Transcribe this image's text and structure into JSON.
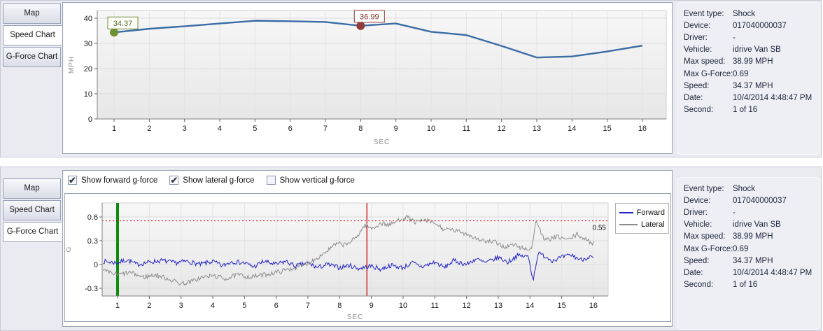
{
  "sidebar": {
    "tabs": [
      "Map",
      "Speed Chart",
      "G-Force Chart"
    ]
  },
  "top_panel": {
    "selected_tab": "Speed Chart"
  },
  "bottom_panel": {
    "selected_tab": "G-Force Chart",
    "checkboxes": [
      {
        "label": "Show forward g-force",
        "checked": true
      },
      {
        "label": "Show lateral g-force",
        "checked": true
      },
      {
        "label": "Show vertical g-force",
        "checked": false
      }
    ]
  },
  "info": {
    "rows": [
      {
        "label": "Event type:",
        "value": "Shock"
      },
      {
        "label": "Device:",
        "value": "017040000037"
      },
      {
        "label": "Driver:",
        "value": "-"
      },
      {
        "label": "Vehicle:",
        "value": "idrive Van SB"
      },
      {
        "label": "Max speed:",
        "value": "38.99 MPH"
      },
      {
        "label": "Max G-Force:",
        "value": "0.69"
      },
      {
        "label": "Speed:",
        "value": "34.37 MPH"
      },
      {
        "label": "Date:",
        "value": "10/4/2014 4:48:47 PM"
      },
      {
        "label": "Second:",
        "value": "1 of 16"
      }
    ]
  },
  "colors": {
    "speed_line": "#3a6ca6",
    "forward": "#2323c8",
    "lateral": "#8c8c8c",
    "green_marker": "#6d9032",
    "red_marker": "#8e3b3b",
    "green_event_line": "#0e8a0e",
    "red_event_line": "#cc2a2a",
    "threshold": "#e00000",
    "axis": "#808080",
    "grid": "#dcdcdc"
  },
  "chart_data": [
    {
      "type": "line",
      "title": "Speed Chart",
      "xlabel": "SEC",
      "ylabel": "MPH",
      "x": [
        1,
        2,
        3,
        4,
        5,
        6,
        7,
        8,
        9,
        10,
        11,
        12,
        13,
        14,
        15,
        16
      ],
      "values": [
        34.37,
        35.8,
        36.8,
        37.9,
        38.99,
        38.8,
        38.5,
        36.99,
        37.9,
        34.6,
        33.3,
        29.0,
        24.4,
        24.8,
        26.8,
        29.1
      ],
      "yticks": [
        0,
        10,
        20,
        30,
        40
      ],
      "ylim": [
        0,
        43
      ],
      "line_color": "#3a6ca6",
      "markers": [
        {
          "x": 1,
          "value": 34.37,
          "label": "34.37",
          "color": "#6d9032",
          "text_color": "#55702a"
        },
        {
          "x": 8,
          "value": 36.99,
          "label": "36.99",
          "color": "#8e3b3b",
          "text_color": "#7d2f2f"
        }
      ]
    },
    {
      "type": "line",
      "title": "G-Force Chart",
      "xlabel": "SEC",
      "ylabel": "G",
      "xticks": [
        1,
        2,
        3,
        4,
        5,
        6,
        7,
        8,
        9,
        10,
        11,
        12,
        13,
        14,
        15,
        16
      ],
      "yticks": [
        -0.3,
        0,
        0.3,
        0.6
      ],
      "ylim": [
        -0.4,
        0.78
      ],
      "threshold": {
        "value": 0.55,
        "label": "0.55",
        "color": "#e00000"
      },
      "event_lines": [
        {
          "x": 1,
          "color": "#0e8a0e",
          "width": 4,
          "name": "event-start-line"
        },
        {
          "x": 8.86,
          "color": "#cc2a2a",
          "width": 1.5,
          "name": "shock-moment-line"
        }
      ],
      "legend": [
        {
          "name": "Forward",
          "color": "#2323c8"
        },
        {
          "name": "Lateral",
          "color": "#8c8c8c"
        }
      ],
      "noise_amp": 0.03,
      "noise_seed": 7,
      "series": [
        {
          "name": "Forward",
          "color": "#2323c8",
          "anchors": [
            [
              0.55,
              0.04
            ],
            [
              1,
              0.02
            ],
            [
              1.3,
              0.06
            ],
            [
              1.6,
              0.0
            ],
            [
              2,
              0.03
            ],
            [
              2.4,
              0.05
            ],
            [
              2.8,
              0.02
            ],
            [
              3.2,
              0.04
            ],
            [
              3.6,
              0.0
            ],
            [
              4,
              0.04
            ],
            [
              4.3,
              -0.02
            ],
            [
              4.6,
              0.04
            ],
            [
              5,
              0.02
            ],
            [
              5.3,
              -0.03
            ],
            [
              5.6,
              0.04
            ],
            [
              6,
              0.0
            ],
            [
              6.3,
              0.04
            ],
            [
              6.6,
              -0.02
            ],
            [
              7,
              0.02
            ],
            [
              7.3,
              -0.04
            ],
            [
              7.6,
              0.0
            ],
            [
              8,
              -0.04
            ],
            [
              8.3,
              -0.01
            ],
            [
              8.6,
              -0.05
            ],
            [
              9,
              -0.02
            ],
            [
              9.3,
              -0.06
            ],
            [
              9.6,
              -0.01
            ],
            [
              10,
              -0.04
            ],
            [
              10.3,
              0.02
            ],
            [
              10.6,
              -0.03
            ],
            [
              11,
              0.03
            ],
            [
              11.3,
              -0.04
            ],
            [
              11.6,
              0.05
            ],
            [
              12,
              0.0
            ],
            [
              12.3,
              0.07
            ],
            [
              12.6,
              0.02
            ],
            [
              13,
              0.09
            ],
            [
              13.3,
              0.03
            ],
            [
              13.6,
              0.11
            ],
            [
              13.95,
              0.1
            ],
            [
              14.1,
              -0.2
            ],
            [
              14.25,
              0.14
            ],
            [
              14.5,
              0.1
            ],
            [
              14.7,
              0.05
            ],
            [
              15,
              0.09
            ],
            [
              15.3,
              0.12
            ],
            [
              15.6,
              0.06
            ],
            [
              15.9,
              0.1
            ],
            [
              16,
              0.07
            ]
          ]
        },
        {
          "name": "Lateral",
          "color": "#8c8c8c",
          "anchors": [
            [
              0.55,
              -0.08
            ],
            [
              1,
              -0.13
            ],
            [
              1.4,
              -0.1
            ],
            [
              1.8,
              -0.16
            ],
            [
              2.2,
              -0.13
            ],
            [
              2.6,
              -0.18
            ],
            [
              3,
              -0.24
            ],
            [
              3.3,
              -0.22
            ],
            [
              3.6,
              -0.17
            ],
            [
              4,
              -0.14
            ],
            [
              4.4,
              -0.18
            ],
            [
              4.8,
              -0.13
            ],
            [
              5.2,
              -0.16
            ],
            [
              5.6,
              -0.13
            ],
            [
              6,
              -0.1
            ],
            [
              6.4,
              -0.06
            ],
            [
              6.8,
              -0.02
            ],
            [
              7.2,
              0.06
            ],
            [
              7.6,
              0.17
            ],
            [
              7.9,
              0.26
            ],
            [
              8.2,
              0.25
            ],
            [
              8.5,
              0.33
            ],
            [
              8.8,
              0.5
            ],
            [
              9,
              0.45
            ],
            [
              9.3,
              0.52
            ],
            [
              9.6,
              0.5
            ],
            [
              9.9,
              0.57
            ],
            [
              10.1,
              0.6
            ],
            [
              10.4,
              0.53
            ],
            [
              10.7,
              0.56
            ],
            [
              11,
              0.52
            ],
            [
              11.3,
              0.44
            ],
            [
              11.6,
              0.43
            ],
            [
              12,
              0.39
            ],
            [
              12.3,
              0.33
            ],
            [
              12.6,
              0.29
            ],
            [
              12.9,
              0.28
            ],
            [
              13.2,
              0.22
            ],
            [
              13.5,
              0.25
            ],
            [
              13.8,
              0.2
            ],
            [
              14.05,
              0.2
            ],
            [
              14.2,
              0.56
            ],
            [
              14.45,
              0.3
            ],
            [
              14.7,
              0.33
            ],
            [
              14.9,
              0.35
            ],
            [
              15.2,
              0.31
            ],
            [
              15.5,
              0.38
            ],
            [
              15.8,
              0.3
            ],
            [
              16,
              0.27
            ]
          ]
        }
      ]
    }
  ]
}
